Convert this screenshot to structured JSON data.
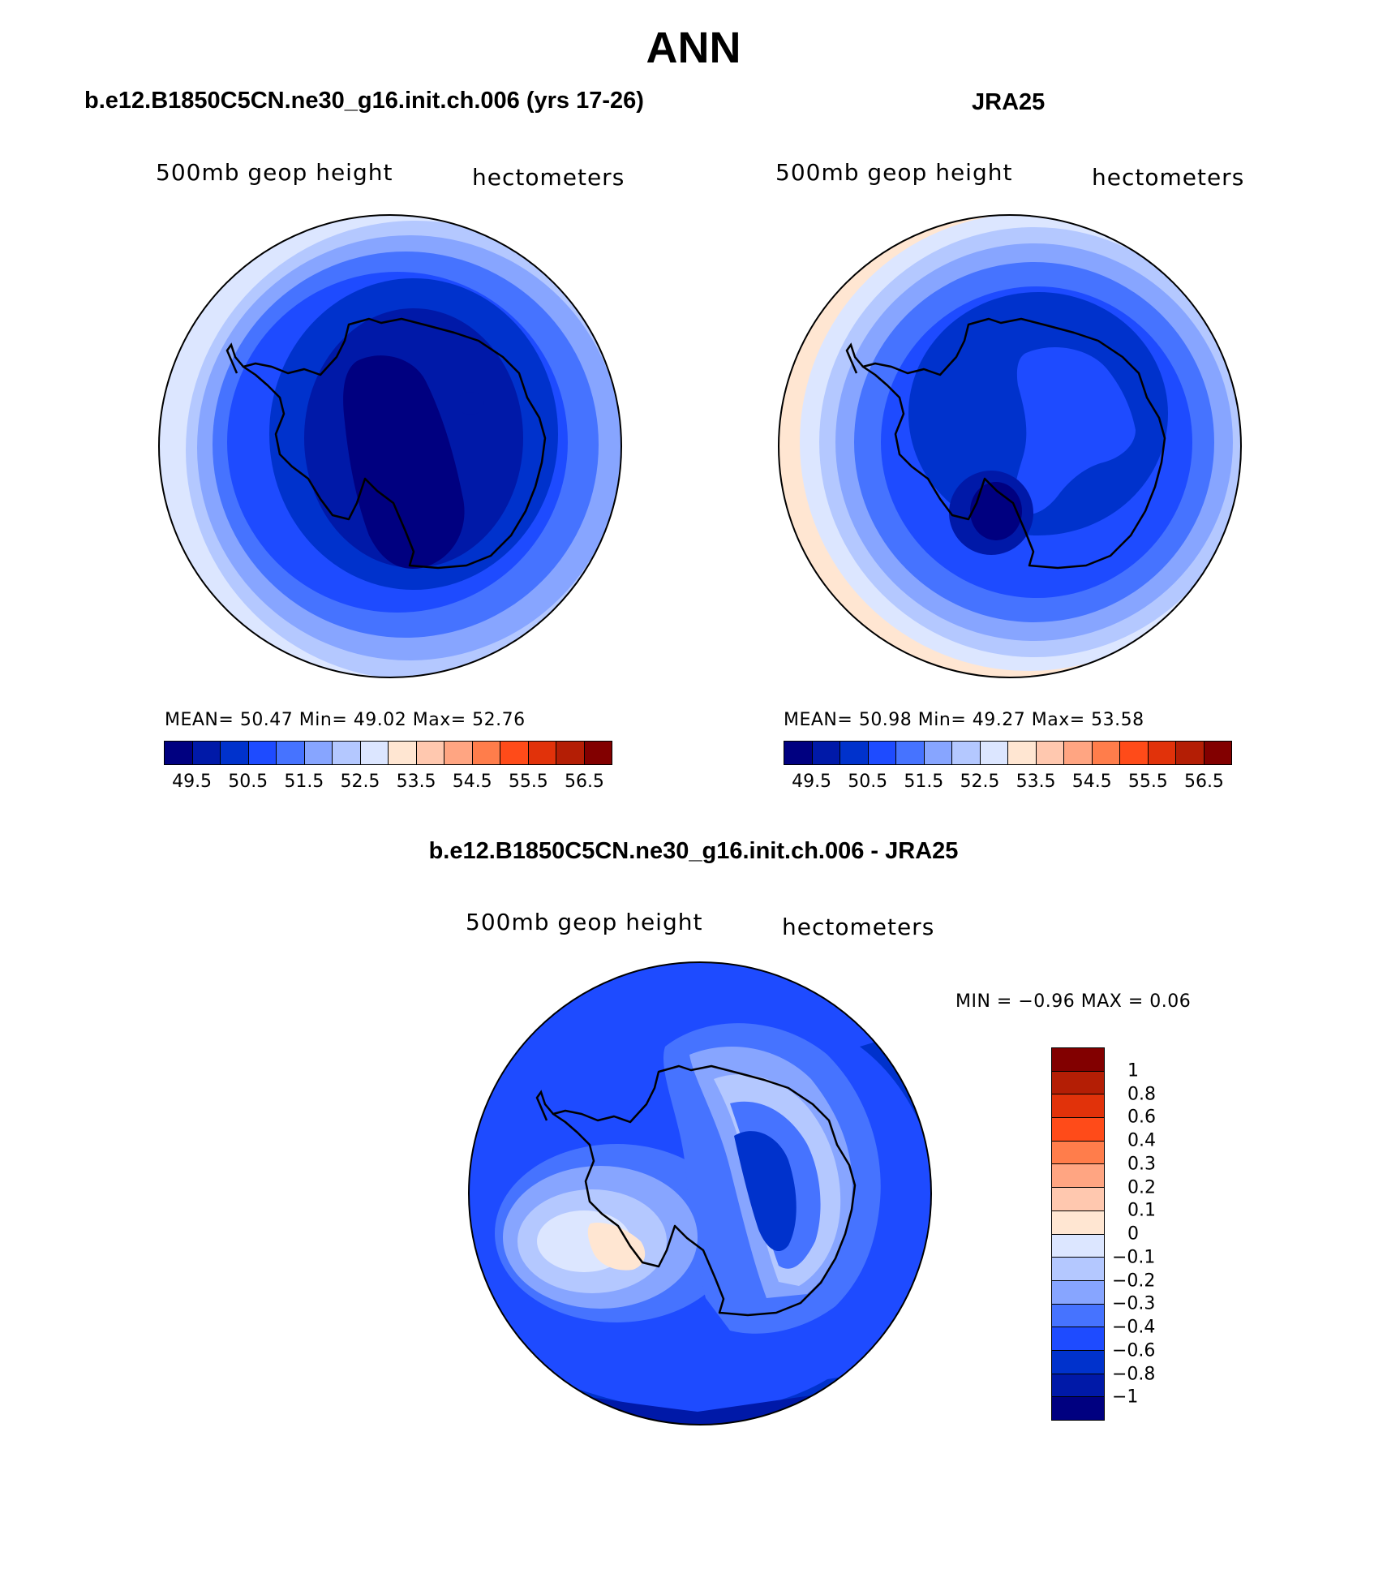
{
  "figure_title": "ANN",
  "colors": {
    "seq": [
      "#000080",
      "#0019a8",
      "#0032cc",
      "#1e4bff",
      "#4673ff",
      "#87a5ff",
      "#b4c8ff",
      "#dce6ff",
      "#ffe6d2",
      "#ffc8af",
      "#ffa582",
      "#ff7d4b",
      "#ff4b19",
      "#e1320a",
      "#b41e05",
      "#820000"
    ],
    "diff": [
      "#820000",
      "#b41e05",
      "#e1320a",
      "#ff4b19",
      "#ff7d4b",
      "#ffa582",
      "#ffc8af",
      "#ffe6d2",
      "#dce6ff",
      "#b4c8ff",
      "#87a5ff",
      "#4673ff",
      "#1e4bff",
      "#0032cc",
      "#0019a8",
      "#000080"
    ]
  },
  "panels": {
    "model": {
      "title": "b.e12.B1850C5CN.ne30_g16.init.ch.006 (yrs 17-26)",
      "left_text": "500mb  geop  height",
      "right_text": "hectometers",
      "stats": "MEAN=   50.47    Min=    49.02    Max=    52.76"
    },
    "obs": {
      "title": "JRA25",
      "left_text": "500mb  geop  height",
      "right_text": "hectometers",
      "stats": "MEAN=   50.98    Min=    49.27    Max=    53.58"
    },
    "diff": {
      "title": "b.e12.B1850C5CN.ne30_g16.init.ch.006 - JRA25",
      "left_text": "500mb  geop  height",
      "right_text": "hectometers",
      "stats": "MIN =    −0.96  MAX =     0.06"
    }
  },
  "chart_data": [
    {
      "type": "heatmap",
      "projection": "south polar stereographic",
      "title": "b.e12.B1850C5CN.ne30_g16.init.ch.006 (yrs 17-26)",
      "variable": "500mb geop height",
      "units": "hectometers",
      "mean": 50.47,
      "min": 49.02,
      "max": 52.76,
      "contour_levels": [
        "49.5",
        "50.5",
        "51.5",
        "52.5",
        "53.5",
        "54.5",
        "55.5",
        "56.5"
      ]
    },
    {
      "type": "heatmap",
      "projection": "south polar stereographic",
      "title": "JRA25",
      "variable": "500mb geop height",
      "units": "hectometers",
      "mean": 50.98,
      "min": 49.27,
      "max": 53.58,
      "contour_levels": [
        "49.5",
        "50.5",
        "51.5",
        "52.5",
        "53.5",
        "54.5",
        "55.5",
        "56.5"
      ]
    },
    {
      "type": "heatmap",
      "projection": "south polar stereographic",
      "title": "b.e12.B1850C5CN.ne30_g16.init.ch.006 - JRA25",
      "variable": "500mb geop height",
      "units": "hectometers",
      "min": -0.96,
      "max": 0.06,
      "contour_levels": [
        "1",
        "0.8",
        "0.6",
        "0.4",
        "0.3",
        "0.2",
        "0.1",
        "0",
        "−0.1",
        "−0.2",
        "−0.3",
        "−0.4",
        "−0.6",
        "−0.8",
        "−1"
      ]
    }
  ]
}
